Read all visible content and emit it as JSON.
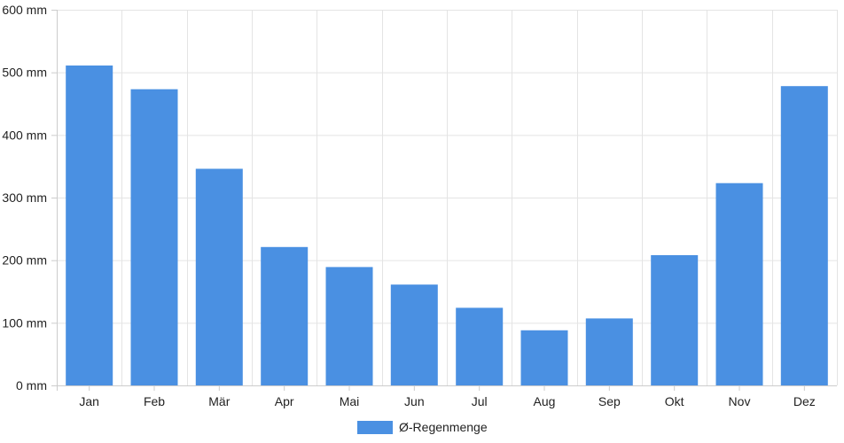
{
  "chart_data": {
    "type": "bar",
    "categories": [
      "Jan",
      "Feb",
      "Mär",
      "Apr",
      "Mai",
      "Jun",
      "Jul",
      "Aug",
      "Sep",
      "Okt",
      "Nov",
      "Dez"
    ],
    "series": [
      {
        "name": "Ø-Regenmenge",
        "color": "#4a90e2",
        "values": [
          511,
          473,
          346,
          221,
          189,
          161,
          124,
          88,
          107,
          208,
          323,
          478
        ]
      }
    ],
    "ylim": [
      0,
      600
    ],
    "yticks": [
      0,
      100,
      200,
      300,
      400,
      500,
      600
    ],
    "ytick_labels": [
      "0 mm",
      "100 mm",
      "200 mm",
      "300 mm",
      "400 mm",
      "500 mm",
      "600 mm"
    ],
    "grid": true,
    "legend": "bottom-center"
  }
}
